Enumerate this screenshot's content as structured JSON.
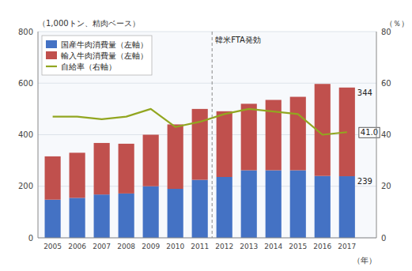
{
  "chart_data": {
    "type": "bar",
    "stacked": true,
    "xlabel": "（年）",
    "ylabel": "（1,000トン、精肉ベース）",
    "y2label": "（％）",
    "categories": [
      "2005",
      "2006",
      "2007",
      "2008",
      "2009",
      "2010",
      "2011",
      "2012",
      "2013",
      "2014",
      "2015",
      "2016",
      "2017"
    ],
    "series": [
      {
        "name": "国産牛肉消費量（左軸）",
        "type": "bar",
        "color": "#4472C4",
        "values": [
          148,
          155,
          168,
          172,
          200,
          190,
          225,
          236,
          262,
          262,
          262,
          240,
          239
        ],
        "data_labels": true,
        "value_labels": [
          null,
          null,
          null,
          null,
          null,
          null,
          null,
          null,
          null,
          null,
          null,
          null,
          "239"
        ]
      },
      {
        "name": "輸入牛肉消費量（左軸）",
        "type": "bar",
        "color": "#C0504D",
        "values": [
          168,
          175,
          200,
          193,
          200,
          250,
          275,
          255,
          258,
          273,
          285,
          357,
          344
        ],
        "data_labels": true,
        "value_labels": [
          null,
          null,
          null,
          null,
          null,
          null,
          null,
          null,
          null,
          null,
          null,
          null,
          "344"
        ]
      },
      {
        "name": "自給率（右軸）",
        "type": "line",
        "axis": "y2",
        "color": "#92A620",
        "values": [
          47.0,
          47.0,
          46.0,
          47.0,
          50.0,
          43.0,
          45.0,
          48.0,
          50.0,
          49.0,
          48.0,
          40.0,
          41.0
        ],
        "data_labels": true,
        "value_labels": [
          null,
          null,
          null,
          null,
          null,
          null,
          null,
          null,
          null,
          null,
          null,
          null,
          "41.0"
        ]
      }
    ],
    "ylim": [
      0,
      800
    ],
    "yticks": [
      0,
      200,
      400,
      600,
      800
    ],
    "y2lim": [
      0,
      80
    ],
    "y2ticks": [
      0,
      20,
      40,
      60,
      80
    ],
    "grid": true,
    "legend": "upper left",
    "annotations": [
      {
        "text": "韓米FTA発効",
        "x": "2012"
      }
    ]
  }
}
